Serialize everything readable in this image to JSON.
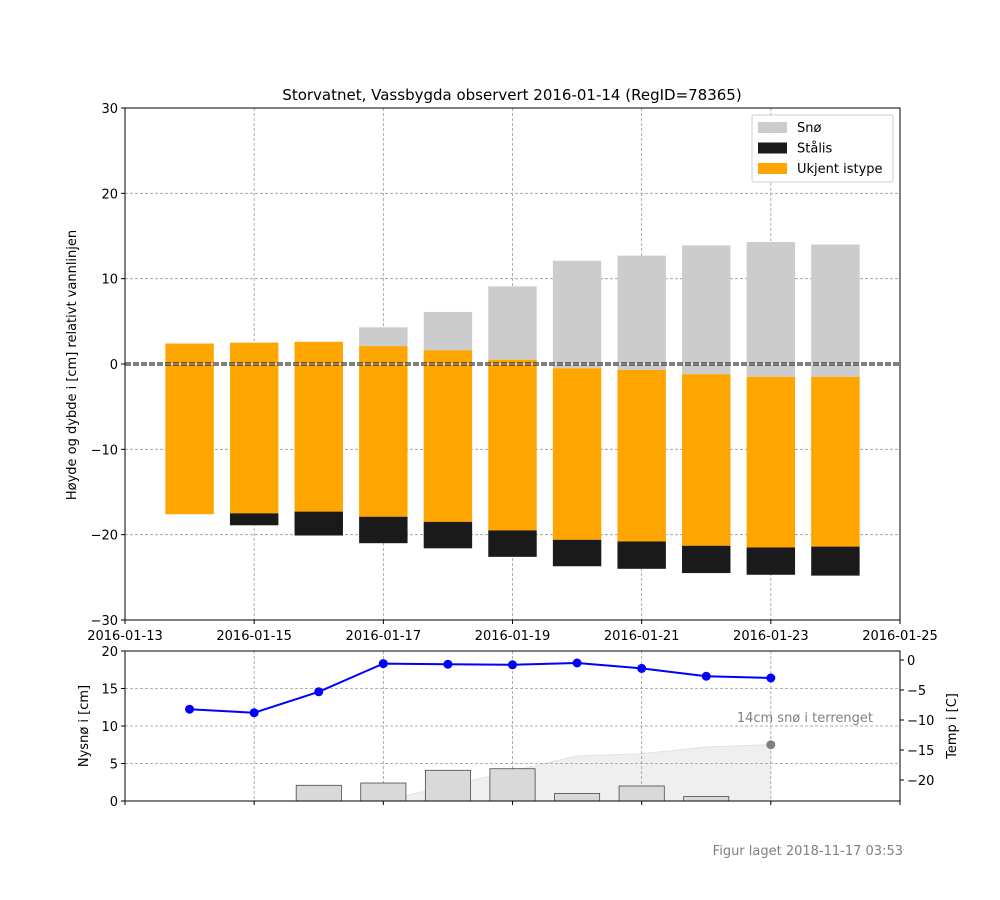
{
  "figure_note": "Figur laget 2018-11-17 03:53",
  "colors": {
    "snow": "#cccccc",
    "black_ice": "#1a1a1a",
    "unknown_ice": "#ffa500",
    "temp_line": "#0000ff",
    "new_snow_bar": "#d9d9d9",
    "terrain_fill": "#efefef",
    "grid": "#999999",
    "terrain_marker": "#808080"
  },
  "chart_data": [
    {
      "type": "bar",
      "title": "Storvatnet, Vassbygda observert 2016-01-14 (RegID=78365)",
      "ylabel": "Høyde og dybde i [cm] relativt vannlinjen",
      "xlim": [
        "2016-01-13",
        "2016-01-25"
      ],
      "ylim": [
        -30,
        30
      ],
      "x_ticks": [
        "2016-01-13",
        "2016-01-15",
        "2016-01-17",
        "2016-01-19",
        "2016-01-21",
        "2016-01-23",
        "2016-01-25"
      ],
      "y_ticks": [
        -30,
        -20,
        -10,
        0,
        10,
        20,
        30
      ],
      "y_tick_labels": [
        "−30",
        "−20",
        "−10",
        "0",
        "10",
        "20",
        "30"
      ],
      "grid": true,
      "waterline": 0,
      "legend_position": "top-right",
      "legend": [
        {
          "name": "Snø",
          "color_key": "snow"
        },
        {
          "name": "Stålis",
          "color_key": "black_ice"
        },
        {
          "name": "Ukjent istype",
          "color_key": "unknown_ice"
        }
      ],
      "columns": [
        {
          "date": "2016-01-14",
          "snow": [
            null,
            null
          ],
          "unknown_ice": [
            -17.6,
            2.4
          ],
          "black_ice": [
            null,
            null
          ]
        },
        {
          "date": "2016-01-15",
          "snow": [
            null,
            null
          ],
          "unknown_ice": [
            -17.5,
            2.5
          ],
          "black_ice": [
            -18.9,
            -17.5
          ]
        },
        {
          "date": "2016-01-16",
          "snow": [
            null,
            null
          ],
          "unknown_ice": [
            -17.3,
            2.6
          ],
          "black_ice": [
            -20.1,
            -17.3
          ]
        },
        {
          "date": "2016-01-17",
          "snow": [
            2.1,
            4.3
          ],
          "unknown_ice": [
            -17.9,
            2.1
          ],
          "black_ice": [
            -21.0,
            -17.9
          ]
        },
        {
          "date": "2016-01-18",
          "snow": [
            1.6,
            6.1
          ],
          "unknown_ice": [
            -18.5,
            1.6
          ],
          "black_ice": [
            -21.6,
            -18.5
          ]
        },
        {
          "date": "2016-01-19",
          "snow": [
            0.5,
            9.1
          ],
          "unknown_ice": [
            -19.5,
            0.5
          ],
          "black_ice": [
            -22.6,
            -19.5
          ]
        },
        {
          "date": "2016-01-20",
          "snow": [
            -0.5,
            12.1
          ],
          "unknown_ice": [
            -20.6,
            -0.5
          ],
          "black_ice": [
            -23.7,
            -20.6
          ]
        },
        {
          "date": "2016-01-21",
          "snow": [
            -0.7,
            12.7
          ],
          "unknown_ice": [
            -20.8,
            -0.7
          ],
          "black_ice": [
            -24.0,
            -20.8
          ]
        },
        {
          "date": "2016-01-22",
          "snow": [
            -1.2,
            13.9
          ],
          "unknown_ice": [
            -21.3,
            -1.2
          ],
          "black_ice": [
            -24.5,
            -21.3
          ]
        },
        {
          "date": "2016-01-23",
          "snow": [
            -1.5,
            14.3
          ],
          "unknown_ice": [
            -21.5,
            -1.5
          ],
          "black_ice": [
            -24.7,
            -21.5
          ]
        },
        {
          "date": "2016-01-24",
          "snow": [
            -1.5,
            14.0
          ],
          "unknown_ice": [
            -21.4,
            -1.5
          ],
          "black_ice": [
            -24.8,
            -21.4
          ]
        }
      ]
    },
    {
      "type": "bar",
      "ylabel": "Nysnø i [cm]",
      "ylim": [
        0,
        20
      ],
      "y_ticks": [
        0,
        5,
        10,
        15,
        20
      ],
      "grid": true,
      "new_snow": {
        "dates": [
          "2016-01-16",
          "2016-01-17",
          "2016-01-18",
          "2016-01-19",
          "2016-01-20",
          "2016-01-21",
          "2016-01-22"
        ],
        "values": [
          2.1,
          2.4,
          4.1,
          4.3,
          1.0,
          2.0,
          0.6
        ]
      },
      "terrain_snow": {
        "dates": [
          "2016-01-15",
          "2016-01-16",
          "2016-01-17",
          "2016-01-18",
          "2016-01-19",
          "2016-01-20",
          "2016-01-21",
          "2016-01-22",
          "2016-01-23"
        ],
        "values": [
          0,
          0,
          0,
          2.0,
          4.0,
          6.0,
          6.3,
          7.2,
          7.5
        ],
        "annotation": "14cm snø i terrenget",
        "marker_date": "2016-01-23",
        "marker_value": 7.5
      }
    },
    {
      "type": "line",
      "ylabel": "Temp i [C]",
      "ylim": [
        -23.5,
        1.5
      ],
      "y_ticks": [
        0,
        -5,
        -10,
        -15,
        -20
      ],
      "y_tick_labels": [
        "0",
        "−5",
        "−10",
        "−15",
        "−20"
      ],
      "dates": [
        "2016-01-14",
        "2016-01-15",
        "2016-01-16",
        "2016-01-17",
        "2016-01-18",
        "2016-01-19",
        "2016-01-20",
        "2016-01-21",
        "2016-01-22",
        "2016-01-23"
      ],
      "values": [
        -8.2,
        -8.8,
        -5.3,
        -0.6,
        -0.7,
        -0.8,
        -0.5,
        -1.4,
        -2.7,
        -3.0
      ]
    }
  ]
}
